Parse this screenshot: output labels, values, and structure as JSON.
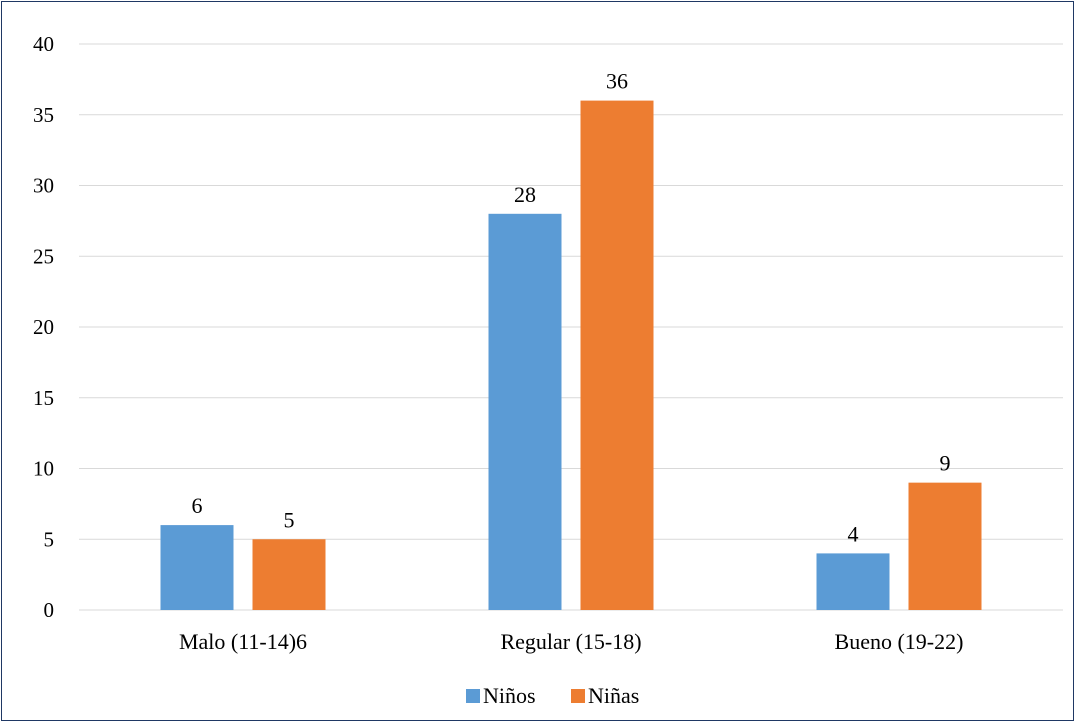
{
  "chart_data": {
    "type": "bar",
    "categories": [
      "Malo (11-14)6",
      "Regular (15-18)",
      "Bueno (19-22)"
    ],
    "series": [
      {
        "name": "Niños",
        "values": [
          6,
          28,
          4
        ],
        "color": "#5b9bd5"
      },
      {
        "name": "Niñas",
        "values": [
          5,
          36,
          9
        ],
        "color": "#ed7d31"
      }
    ],
    "ylim": [
      0,
      40
    ],
    "yticks": [
      0,
      5,
      10,
      15,
      20,
      25,
      30,
      35,
      40
    ],
    "grid": true,
    "legend_position": "bottom",
    "gridline_color": "#d9d9d9",
    "border_color": "#1f3864"
  }
}
